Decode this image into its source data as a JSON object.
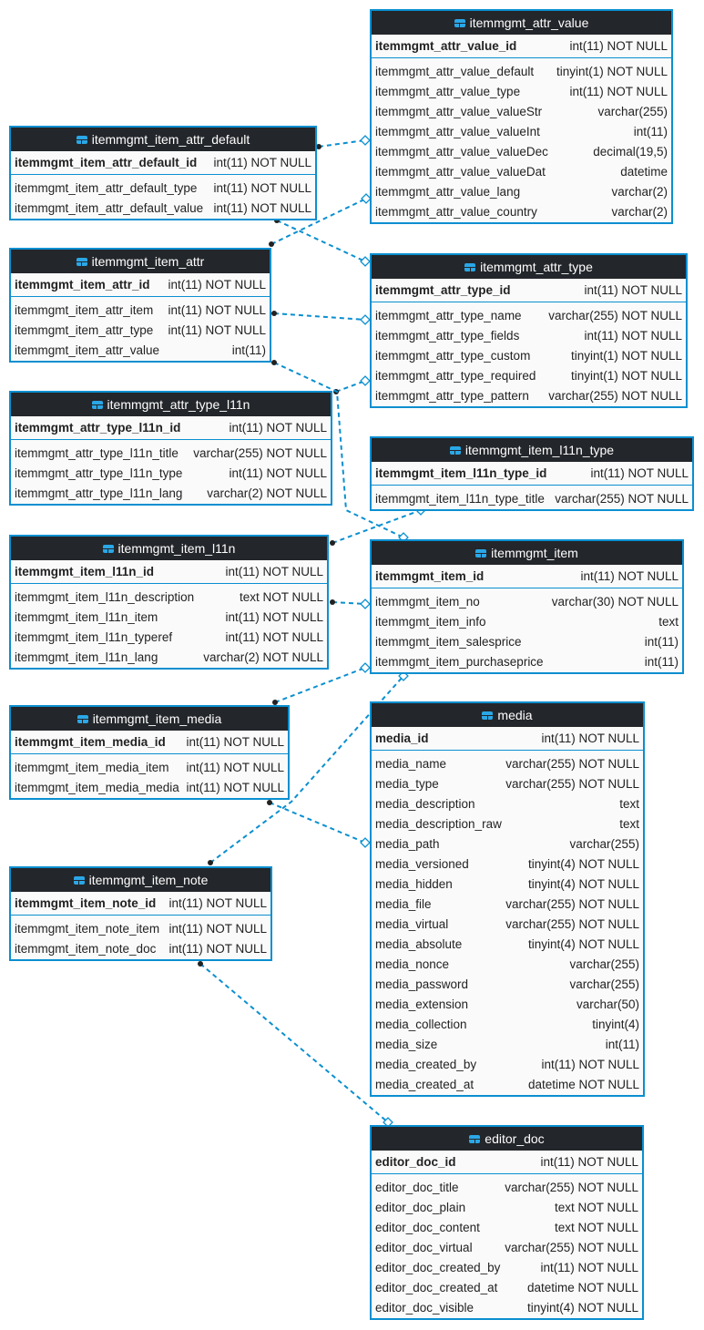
{
  "colors": {
    "border": "#0a8fd0",
    "header": "#23262a",
    "connector": "#0a8fd0"
  },
  "tables": [
    {
      "name": "itemmgmt_attr_value",
      "columns": [
        [
          "itemmgmt_attr_value_id",
          "int(11) NOT NULL"
        ],
        [
          "itemmgmt_attr_value_default",
          "tinyint(1) NOT NULL"
        ],
        [
          "itemmgmt_attr_value_type",
          "int(11) NOT NULL"
        ],
        [
          "itemmgmt_attr_value_valueStr",
          "varchar(255)"
        ],
        [
          "itemmgmt_attr_value_valueInt",
          "int(11)"
        ],
        [
          "itemmgmt_attr_value_valueDec",
          "decimal(19,5)"
        ],
        [
          "itemmgmt_attr_value_valueDat",
          "datetime"
        ],
        [
          "itemmgmt_attr_value_lang",
          "varchar(2)"
        ],
        [
          "itemmgmt_attr_value_country",
          "varchar(2)"
        ]
      ]
    },
    {
      "name": "itemmgmt_item_attr_default",
      "columns": [
        [
          "itemmgmt_item_attr_default_id",
          "int(11) NOT NULL"
        ],
        [
          "itemmgmt_item_attr_default_type",
          "int(11) NOT NULL"
        ],
        [
          "itemmgmt_item_attr_default_value",
          "int(11) NOT NULL"
        ]
      ]
    },
    {
      "name": "itemmgmt_item_attr",
      "columns": [
        [
          "itemmgmt_item_attr_id",
          "int(11) NOT NULL"
        ],
        [
          "itemmgmt_item_attr_item",
          "int(11) NOT NULL"
        ],
        [
          "itemmgmt_item_attr_type",
          "int(11) NOT NULL"
        ],
        [
          "itemmgmt_item_attr_value",
          "int(11)"
        ]
      ]
    },
    {
      "name": "itemmgmt_attr_type",
      "columns": [
        [
          "itemmgmt_attr_type_id",
          "int(11) NOT NULL"
        ],
        [
          "itemmgmt_attr_type_name",
          "varchar(255) NOT NULL"
        ],
        [
          "itemmgmt_attr_type_fields",
          "int(11) NOT NULL"
        ],
        [
          "itemmgmt_attr_type_custom",
          "tinyint(1) NOT NULL"
        ],
        [
          "itemmgmt_attr_type_required",
          "tinyint(1) NOT NULL"
        ],
        [
          "itemmgmt_attr_type_pattern",
          "varchar(255) NOT NULL"
        ]
      ]
    },
    {
      "name": "itemmgmt_attr_type_l11n",
      "columns": [
        [
          "itemmgmt_attr_type_l11n_id",
          "int(11) NOT NULL"
        ],
        [
          "itemmgmt_attr_type_l11n_title",
          "varchar(255) NOT NULL"
        ],
        [
          "itemmgmt_attr_type_l11n_type",
          "int(11) NOT NULL"
        ],
        [
          "itemmgmt_attr_type_l11n_lang",
          "varchar(2) NOT NULL"
        ]
      ]
    },
    {
      "name": "itemmgmt_item_l11n_type",
      "columns": [
        [
          "itemmgmt_item_l11n_type_id",
          "int(11) NOT NULL"
        ],
        [
          "itemmgmt_item_l11n_type_title",
          "varchar(255) NOT NULL"
        ]
      ]
    },
    {
      "name": "itemmgmt_item_l11n",
      "columns": [
        [
          "itemmgmt_item_l11n_id",
          "int(11) NOT NULL"
        ],
        [
          "itemmgmt_item_l11n_description",
          "text NOT NULL"
        ],
        [
          "itemmgmt_item_l11n_item",
          "int(11) NOT NULL"
        ],
        [
          "itemmgmt_item_l11n_typeref",
          "int(11) NOT NULL"
        ],
        [
          "itemmgmt_item_l11n_lang",
          "varchar(2) NOT NULL"
        ]
      ]
    },
    {
      "name": "itemmgmt_item",
      "columns": [
        [
          "itemmgmt_item_id",
          "int(11) NOT NULL"
        ],
        [
          "itemmgmt_item_no",
          "varchar(30) NOT NULL"
        ],
        [
          "itemmgmt_item_info",
          "text"
        ],
        [
          "itemmgmt_item_salesprice",
          "int(11)"
        ],
        [
          "itemmgmt_item_purchaseprice",
          "int(11)"
        ]
      ]
    },
    {
      "name": "itemmgmt_item_media",
      "columns": [
        [
          "itemmgmt_item_media_id",
          "int(11) NOT NULL"
        ],
        [
          "itemmgmt_item_media_item",
          "int(11) NOT NULL"
        ],
        [
          "itemmgmt_item_media_media",
          "int(11) NOT NULL"
        ]
      ]
    },
    {
      "name": "media",
      "columns": [
        [
          "media_id",
          "int(11) NOT NULL"
        ],
        [
          "media_name",
          "varchar(255) NOT NULL"
        ],
        [
          "media_type",
          "varchar(255) NOT NULL"
        ],
        [
          "media_description",
          "text"
        ],
        [
          "media_description_raw",
          "text"
        ],
        [
          "media_path",
          "varchar(255)"
        ],
        [
          "media_versioned",
          "tinyint(4) NOT NULL"
        ],
        [
          "media_hidden",
          "tinyint(4) NOT NULL"
        ],
        [
          "media_file",
          "varchar(255) NOT NULL"
        ],
        [
          "media_virtual",
          "varchar(255) NOT NULL"
        ],
        [
          "media_absolute",
          "tinyint(4) NOT NULL"
        ],
        [
          "media_nonce",
          "varchar(255)"
        ],
        [
          "media_password",
          "varchar(255)"
        ],
        [
          "media_extension",
          "varchar(50)"
        ],
        [
          "media_collection",
          "tinyint(4)"
        ],
        [
          "media_size",
          "int(11)"
        ],
        [
          "media_created_by",
          "int(11) NOT NULL"
        ],
        [
          "media_created_at",
          "datetime NOT NULL"
        ]
      ]
    },
    {
      "name": "itemmgmt_item_note",
      "columns": [
        [
          "itemmgmt_item_note_id",
          "int(11) NOT NULL"
        ],
        [
          "itemmgmt_item_note_item",
          "int(11) NOT NULL"
        ],
        [
          "itemmgmt_item_note_doc",
          "int(11) NOT NULL"
        ]
      ]
    },
    {
      "name": "editor_doc",
      "columns": [
        [
          "editor_doc_id",
          "int(11) NOT NULL"
        ],
        [
          "editor_doc_title",
          "varchar(255) NOT NULL"
        ],
        [
          "editor_doc_plain",
          "text NOT NULL"
        ],
        [
          "editor_doc_content",
          "text NOT NULL"
        ],
        [
          "editor_doc_virtual",
          "varchar(255) NOT NULL"
        ],
        [
          "editor_doc_created_by",
          "int(11) NOT NULL"
        ],
        [
          "editor_doc_created_at",
          "datetime NOT NULL"
        ],
        [
          "editor_doc_visible",
          "tinyint(4) NOT NULL"
        ]
      ]
    }
  ]
}
